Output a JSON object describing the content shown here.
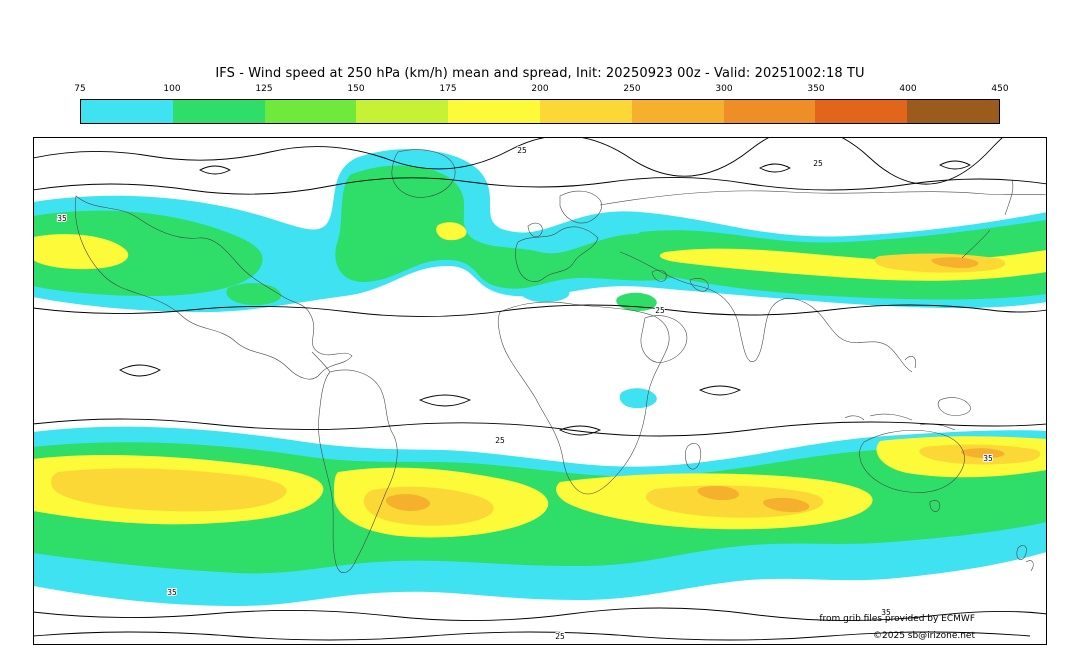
{
  "title": "IFS - Wind speed at 250 hPa (km/h) mean and spread, Init: 20250923 00z - Valid: 20251002:18 TU",
  "colorbar": {
    "ticks": [
      "75",
      "100",
      "125",
      "150",
      "175",
      "200",
      "250",
      "300",
      "350",
      "400",
      "450"
    ],
    "colors": [
      "#3fe2f0",
      "#2ede69",
      "#6fe93c",
      "#c6f134",
      "#fdfa39",
      "#fbd835",
      "#f5b02e",
      "#ee8e26",
      "#e1661c",
      "#9b5b1c"
    ]
  },
  "map": {
    "attribution_line1": "from grib files provided by ECMWF",
    "attribution_line2": "©2025 sb@irizone.net",
    "contour_labels": {
      "v25": "25",
      "v35": "35"
    }
  },
  "chart_data": {
    "type": "heatmap",
    "title": "IFS - Wind speed at 250 hPa (km/h) mean and spread",
    "init": "20250923 00z",
    "valid": "20251002:18 TU",
    "units": "km/h",
    "projection": "global equirectangular world map",
    "colorbar_ticks": [
      75,
      100,
      125,
      150,
      175,
      200,
      250,
      300,
      350,
      400,
      450
    ],
    "colorbar_colors": [
      "#3fe2f0",
      "#2ede69",
      "#6fe93c",
      "#c6f134",
      "#fdfa39",
      "#fbd835",
      "#f5b02e",
      "#ee8e26",
      "#e1661c",
      "#9b5b1c"
    ],
    "shading": "filled contours of ensemble-mean 250 hPa wind speed; values below 75 km/h left white",
    "contours": "black ensemble-spread contour lines labeled 25 and 35",
    "features": [
      {
        "region": "northern-hemisphere jet stream",
        "approx_lat_band": "35N-65N",
        "peak_shading": "175-250 km/h (yellow-orange core over NW Pacific / East Asia)"
      },
      {
        "region": "north Atlantic / Europe branch",
        "peak_shading": "100-175 km/h (green with small yellow cores)"
      },
      {
        "region": "southern-hemisphere jet stream",
        "approx_lat_band": "30S-60S",
        "peak_shading": "175-250 km/h cores south of South America, Africa, Indian Ocean and Australia"
      }
    ]
  }
}
